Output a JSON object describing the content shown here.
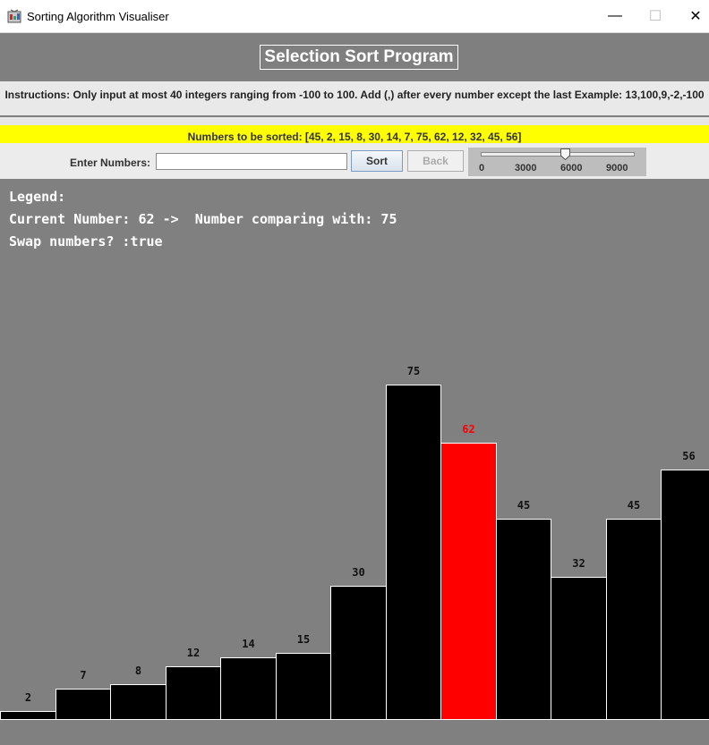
{
  "window": {
    "title": "Sorting Algorithm Visualiser",
    "icon": "app-icon",
    "minimize_glyph": "—",
    "maximize_glyph": "☐",
    "close_glyph": "✕"
  },
  "header": {
    "program_title": "Selection Sort Program",
    "instructions": "Instructions: Only input at most 40 integers ranging from -100 to 100. Add (,) after every number except the last Example: 13,100,9,-2,-100"
  },
  "numbers_bar": {
    "text": "Numbers to be sorted: [45, 2, 15, 8, 30, 14, 7, 75, 62, 12, 32, 45, 56]"
  },
  "controls": {
    "input_label": "Enter Numbers:",
    "input_value": "",
    "sort_label": "Sort",
    "back_label": "Back",
    "slider": {
      "min": 0,
      "max": 10000,
      "value": 5500,
      "ticks": [
        "0",
        "3000",
        "6000",
        "9000"
      ]
    }
  },
  "legend": {
    "heading": "Legend:",
    "current_line": "Current Number: 62 ->  Number comparing with: 75",
    "swap_line": "Swap numbers? :true"
  },
  "colors": {
    "highlight": "#ff0000",
    "bar": "#000000",
    "numbers_bar": "#ffff00"
  },
  "chart_data": {
    "type": "bar",
    "categories": [
      "2",
      "7",
      "8",
      "12",
      "14",
      "15",
      "30",
      "75",
      "62",
      "45",
      "32",
      "45",
      "56"
    ],
    "values": [
      2,
      7,
      8,
      12,
      14,
      15,
      30,
      75,
      62,
      45,
      32,
      45,
      56
    ],
    "highlight_index": 8
  }
}
